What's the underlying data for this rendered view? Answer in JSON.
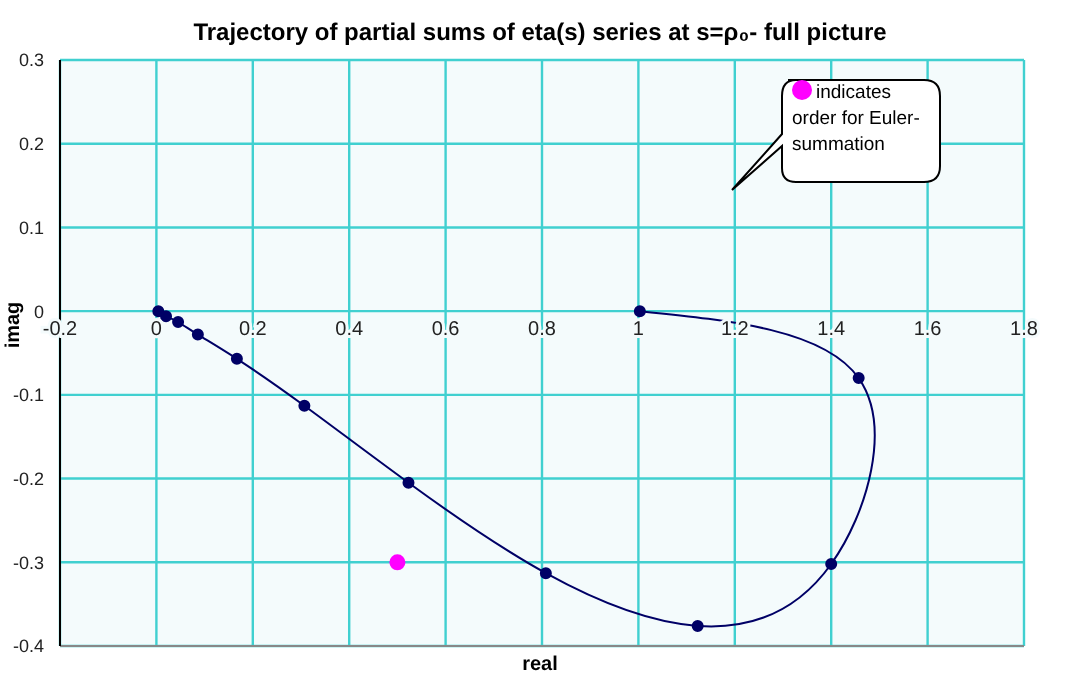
{
  "chart_data": {
    "type": "line",
    "title": "Trajectory of partial sums of eta(s) series at s=ρ₀- full picture",
    "xlabel": "real",
    "ylabel": "imag",
    "series": [
      {
        "type": "line",
        "color": "#000066",
        "x": [
          1.003,
          1.457,
          1.4,
          1.123,
          0.808,
          0.523,
          0.307,
          0.167,
          0.086,
          0.045,
          0.02,
          0.004
        ],
        "values": [
          0,
          -0.08,
          -0.302,
          -0.376,
          -0.313,
          -0.205,
          -0.113,
          -0.057,
          -0.028,
          -0.013,
          -0.006,
          0
        ]
      },
      {
        "type": "scatter",
        "name": "indicates order for Euler-summation",
        "color": "#ff00ff",
        "x": [
          0.5
        ],
        "values": [
          -0.3
        ]
      }
    ],
    "xlim": [
      -0.2,
      1.8
    ],
    "xticks": [
      -0.2,
      0,
      0.2,
      0.4,
      0.6,
      0.8,
      1,
      1.2,
      1.4,
      1.6,
      1.8
    ],
    "ylim": [
      -0.4,
      0.3
    ],
    "yticks": [
      -0.4,
      -0.3,
      -0.2,
      -0.1,
      0,
      0.1,
      0.2,
      0.3
    ],
    "grid": true,
    "legend": "top right",
    "marker": "circle",
    "line_style": "solid"
  }
}
